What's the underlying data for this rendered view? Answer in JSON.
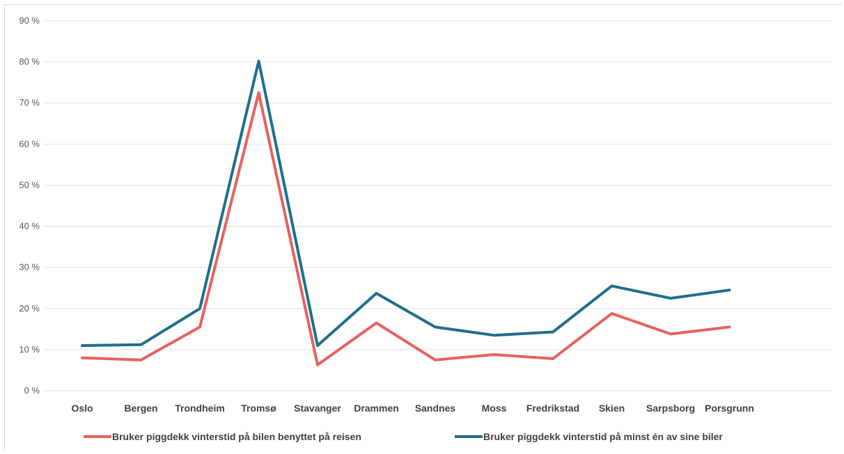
{
  "chart_data": {
    "type": "line",
    "categories": [
      "Oslo",
      "Bergen",
      "Trondheim",
      "Tromsø",
      "Stavanger",
      "Drammen",
      "Sandnes",
      "Moss",
      "Fredrikstad",
      "Skien",
      "Sarpsborg",
      "Porsgrunn"
    ],
    "series": [
      {
        "name": "Bruker piggdekk vinterstid på bilen benyttet på reisen",
        "color": "#e8605f",
        "values": [
          8,
          7.5,
          15.5,
          72.5,
          6.3,
          16.5,
          7.5,
          8.8,
          7.8,
          18.8,
          13.8,
          15.5
        ]
      },
      {
        "name": "Bruker piggdekk vinterstid på minst én av sine biler",
        "color": "#1f6e8c",
        "values": [
          11,
          11.2,
          20,
          80.2,
          11,
          23.7,
          15.5,
          13.5,
          14.3,
          25.5,
          22.5,
          24.5
        ]
      }
    ],
    "y_ticks": [
      "0 %",
      "10 %",
      "20 %",
      "30 %",
      "40 %",
      "50 %",
      "60 %",
      "70 %",
      "80 %",
      "90 %"
    ],
    "ylim": [
      0,
      90
    ],
    "grid": true,
    "legend_position": "bottom"
  }
}
